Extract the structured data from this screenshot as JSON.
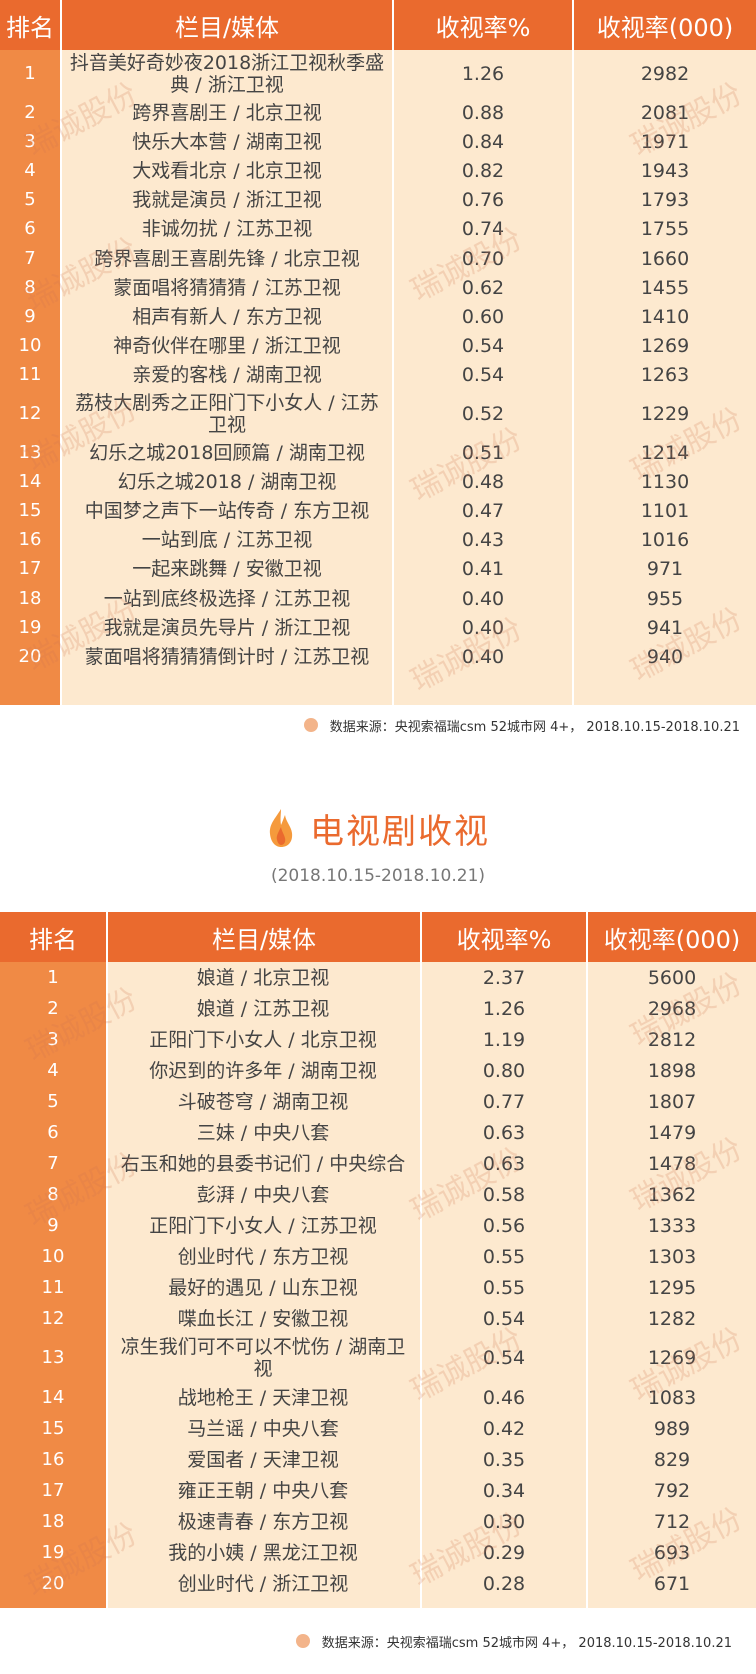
{
  "headers": {
    "rank": "排名",
    "program": "栏目/媒体",
    "rate": "收视率%",
    "audience": "收视率(000)"
  },
  "table1": [
    {
      "rank": "1",
      "program": "抖音美好奇妙夜2018浙江卫视秋季盛典 / 浙江卫视",
      "rate": "1.26",
      "audience": "2982"
    },
    {
      "rank": "2",
      "program": "跨界喜剧王 / 北京卫视",
      "rate": "0.88",
      "audience": "2081"
    },
    {
      "rank": "3",
      "program": "快乐大本营 / 湖南卫视",
      "rate": "0.84",
      "audience": "1971"
    },
    {
      "rank": "4",
      "program": "大戏看北京 / 北京卫视",
      "rate": "0.82",
      "audience": "1943"
    },
    {
      "rank": "5",
      "program": "我就是演员 / 浙江卫视",
      "rate": "0.76",
      "audience": "1793"
    },
    {
      "rank": "6",
      "program": "非诚勿扰 / 江苏卫视",
      "rate": "0.74",
      "audience": "1755"
    },
    {
      "rank": "7",
      "program": "跨界喜剧王喜剧先锋 / 北京卫视",
      "rate": "0.70",
      "audience": "1660"
    },
    {
      "rank": "8",
      "program": "蒙面唱将猜猜猜 / 江苏卫视",
      "rate": "0.62",
      "audience": "1455"
    },
    {
      "rank": "9",
      "program": "相声有新人 / 东方卫视",
      "rate": "0.60",
      "audience": "1410"
    },
    {
      "rank": "10",
      "program": "神奇伙伴在哪里 / 浙江卫视",
      "rate": "0.54",
      "audience": "1269"
    },
    {
      "rank": "11",
      "program": "亲爱的客栈 / 湖南卫视",
      "rate": "0.54",
      "audience": "1263"
    },
    {
      "rank": "12",
      "program": "荔枝大剧秀之正阳门下小女人 / 江苏卫视",
      "rate": "0.52",
      "audience": "1229"
    },
    {
      "rank": "13",
      "program": "幻乐之城2018回顾篇 / 湖南卫视",
      "rate": "0.51",
      "audience": "1214"
    },
    {
      "rank": "14",
      "program": "幻乐之城2018 / 湖南卫视",
      "rate": "0.48",
      "audience": "1130"
    },
    {
      "rank": "15",
      "program": "中国梦之声下一站传奇 / 东方卫视",
      "rate": "0.47",
      "audience": "1101"
    },
    {
      "rank": "16",
      "program": "一站到底 / 江苏卫视",
      "rate": "0.43",
      "audience": "1016"
    },
    {
      "rank": "17",
      "program": "一起来跳舞 / 安徽卫视",
      "rate": "0.41",
      "audience": "971"
    },
    {
      "rank": "18",
      "program": "一站到底终极选择 / 江苏卫视",
      "rate": "0.40",
      "audience": "955"
    },
    {
      "rank": "19",
      "program": "我就是演员先导片 / 浙江卫视",
      "rate": "0.40",
      "audience": "941"
    },
    {
      "rank": "20",
      "program": "蒙面唱将猜猜猜倒计时 / 江苏卫视",
      "rate": "0.40",
      "audience": "940"
    }
  ],
  "source_note": "数据来源：央视索福瑞csm  52城市网 4+， 2018.10.15-2018.10.21",
  "section2": {
    "title": "电视剧收视",
    "date_range": "(2018.10.15-2018.10.21)"
  },
  "table2": [
    {
      "rank": "1",
      "program": "娘道 / 北京卫视",
      "rate": "2.37",
      "audience": "5600"
    },
    {
      "rank": "2",
      "program": "娘道 / 江苏卫视",
      "rate": "1.26",
      "audience": "2968"
    },
    {
      "rank": "3",
      "program": "正阳门下小女人 / 北京卫视",
      "rate": "1.19",
      "audience": "2812"
    },
    {
      "rank": "4",
      "program": "你迟到的许多年 / 湖南卫视",
      "rate": "0.80",
      "audience": "1898"
    },
    {
      "rank": "5",
      "program": "斗破苍穹 / 湖南卫视",
      "rate": "0.77",
      "audience": "1807"
    },
    {
      "rank": "6",
      "program": "三妹 / 中央八套",
      "rate": "0.63",
      "audience": "1479"
    },
    {
      "rank": "7",
      "program": "右玉和她的县委书记们 / 中央综合",
      "rate": "0.63",
      "audience": "1478"
    },
    {
      "rank": "8",
      "program": "彭湃 / 中央八套",
      "rate": "0.58",
      "audience": "1362"
    },
    {
      "rank": "9",
      "program": "正阳门下小女人 / 江苏卫视",
      "rate": "0.56",
      "audience": "1333"
    },
    {
      "rank": "10",
      "program": "创业时代 / 东方卫视",
      "rate": "0.55",
      "audience": "1303"
    },
    {
      "rank": "11",
      "program": "最好的遇见 / 山东卫视",
      "rate": "0.55",
      "audience": "1295"
    },
    {
      "rank": "12",
      "program": "喋血长江 / 安徽卫视",
      "rate": "0.54",
      "audience": "1282"
    },
    {
      "rank": "13",
      "program": "凉生我们可不可以不忧伤 / 湖南卫视",
      "rate": "0.54",
      "audience": "1269"
    },
    {
      "rank": "14",
      "program": "战地枪王 / 天津卫视",
      "rate": "0.46",
      "audience": "1083"
    },
    {
      "rank": "15",
      "program": "马兰谣 / 中央八套",
      "rate": "0.42",
      "audience": "989"
    },
    {
      "rank": "16",
      "program": "爱国者 / 天津卫视",
      "rate": "0.35",
      "audience": "829"
    },
    {
      "rank": "17",
      "program": "雍正王朝 / 中央八套",
      "rate": "0.34",
      "audience": "792"
    },
    {
      "rank": "18",
      "program": "极速青春 / 东方卫视",
      "rate": "0.30",
      "audience": "712"
    },
    {
      "rank": "19",
      "program": "我的小姨 / 黑龙江卫视",
      "rate": "0.29",
      "audience": "693"
    },
    {
      "rank": "20",
      "program": "创业时代 / 浙江卫视",
      "rate": "0.28",
      "audience": "671"
    }
  ],
  "watermark": "瑞诚股份",
  "colors": {
    "header": "#ea6a2e",
    "rank_column": "#f08a45",
    "body": "#fde9cf"
  }
}
